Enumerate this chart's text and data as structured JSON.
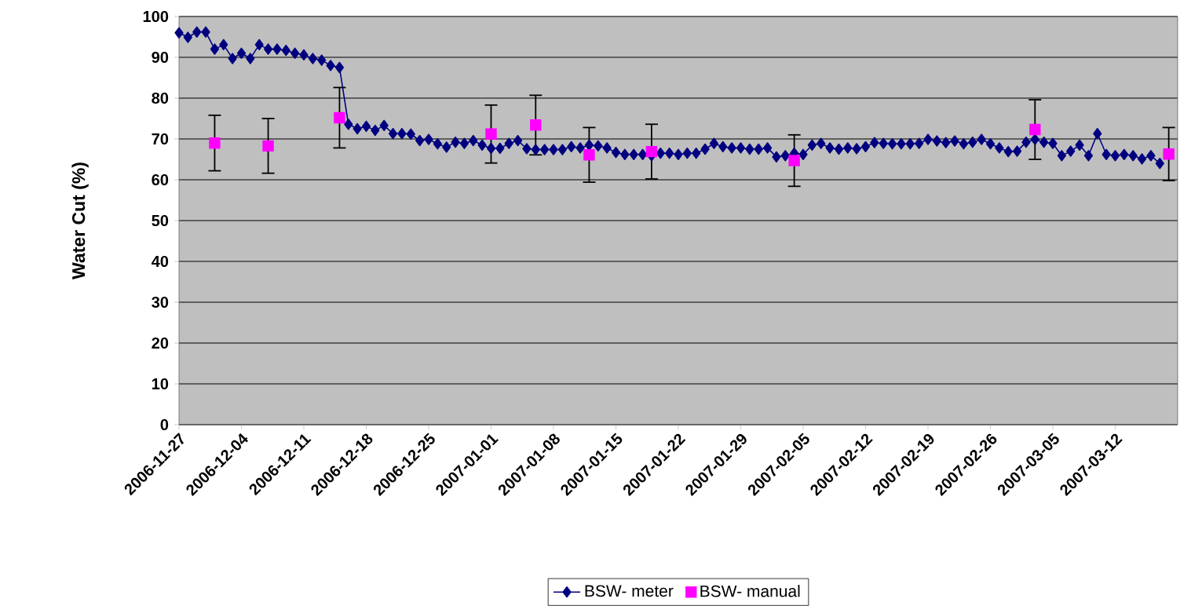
{
  "chart_data": {
    "type": "line",
    "ylabel": "Water Cut (%)",
    "xlim": [
      "2006-11-27",
      "2007-03-19"
    ],
    "ylim": [
      0,
      100
    ],
    "xticks": [
      "2006-11-27",
      "2006-12-04",
      "2006-12-11",
      "2006-12-18",
      "2006-12-25",
      "2007-01-01",
      "2007-01-08",
      "2007-01-15",
      "2007-01-22",
      "2007-01-29",
      "2007-02-05",
      "2007-02-12",
      "2007-02-19",
      "2007-02-26",
      "2007-03-05",
      "2007-03-12"
    ],
    "yticks": [
      0,
      10,
      20,
      30,
      40,
      50,
      60,
      70,
      80,
      90,
      100
    ],
    "grid": "y",
    "legend": "bottom",
    "series": [
      {
        "name": "BSW- meter",
        "color": "#000080",
        "marker": "diamond",
        "x": [
          "2006-11-27",
          "2006-11-28",
          "2006-11-29",
          "2006-11-30",
          "2006-12-01",
          "2006-12-02",
          "2006-12-03",
          "2006-12-04",
          "2006-12-05",
          "2006-12-06",
          "2006-12-07",
          "2006-12-08",
          "2006-12-09",
          "2006-12-10",
          "2006-12-11",
          "2006-12-12",
          "2006-12-13",
          "2006-12-14",
          "2006-12-15",
          "2006-12-16",
          "2006-12-17",
          "2006-12-18",
          "2006-12-19",
          "2006-12-20",
          "2006-12-21",
          "2006-12-22",
          "2006-12-23",
          "2006-12-24",
          "2006-12-25",
          "2006-12-26",
          "2006-12-27",
          "2006-12-28",
          "2006-12-29",
          "2006-12-30",
          "2006-12-31",
          "2007-01-01",
          "2007-01-02",
          "2007-01-03",
          "2007-01-04",
          "2007-01-05",
          "2007-01-06",
          "2007-01-07",
          "2007-01-08",
          "2007-01-09",
          "2007-01-10",
          "2007-01-11",
          "2007-01-12",
          "2007-01-13",
          "2007-01-14",
          "2007-01-15",
          "2007-01-16",
          "2007-01-17",
          "2007-01-18",
          "2007-01-19",
          "2007-01-20",
          "2007-01-21",
          "2007-01-22",
          "2007-01-23",
          "2007-01-24",
          "2007-01-25",
          "2007-01-26",
          "2007-01-27",
          "2007-01-28",
          "2007-01-29",
          "2007-01-30",
          "2007-01-31",
          "2007-02-01",
          "2007-02-02",
          "2007-02-03",
          "2007-02-04",
          "2007-02-05",
          "2007-02-06",
          "2007-02-07",
          "2007-02-08",
          "2007-02-09",
          "2007-02-10",
          "2007-02-11",
          "2007-02-12",
          "2007-02-13",
          "2007-02-14",
          "2007-02-15",
          "2007-02-16",
          "2007-02-17",
          "2007-02-18",
          "2007-02-19",
          "2007-02-20",
          "2007-02-21",
          "2007-02-22",
          "2007-02-23",
          "2007-02-24",
          "2007-02-25",
          "2007-02-26",
          "2007-02-27",
          "2007-02-28",
          "2007-03-01",
          "2007-03-02",
          "2007-03-03",
          "2007-03-04",
          "2007-03-05",
          "2007-03-06",
          "2007-03-07",
          "2007-03-08",
          "2007-03-09",
          "2007-03-10",
          "2007-03-11",
          "2007-03-12",
          "2007-03-13",
          "2007-03-14",
          "2007-03-15",
          "2007-03-16",
          "2007-03-17"
        ],
        "values": [
          96.0,
          94.9,
          96.2,
          96.2,
          92.0,
          93.1,
          89.7,
          91.0,
          89.7,
          93.1,
          92.0,
          92.0,
          91.7,
          91.0,
          90.6,
          89.7,
          89.3,
          88.0,
          87.5,
          73.6,
          72.5,
          73.1,
          72.1,
          73.3,
          71.3,
          71.3,
          71.2,
          69.6,
          69.9,
          68.8,
          68.0,
          69.2,
          68.9,
          69.6,
          68.5,
          67.7,
          67.7,
          68.9,
          69.6,
          67.6,
          67.4,
          67.4,
          67.4,
          67.4,
          68.1,
          67.8,
          68.5,
          68.3,
          67.8,
          66.7,
          66.2,
          66.2,
          66.2,
          65.9,
          66.5,
          66.5,
          66.2,
          66.5,
          66.5,
          67.5,
          68.9,
          68.1,
          67.8,
          67.8,
          67.5,
          67.5,
          67.8,
          65.6,
          65.9,
          66.5,
          66.2,
          68.5,
          68.9,
          67.8,
          67.5,
          67.8,
          67.6,
          68.1,
          69.1,
          68.9,
          68.8,
          68.8,
          68.8,
          68.9,
          69.9,
          69.5,
          69.1,
          69.5,
          68.8,
          69.2,
          69.9,
          68.8,
          67.8,
          66.9,
          67.0,
          69.2,
          69.9,
          69.2,
          68.9,
          65.9,
          67.0,
          68.5,
          65.9,
          71.3,
          66.2,
          65.9,
          66.2,
          65.9,
          65.1,
          65.9,
          64.0
        ]
      },
      {
        "name": "BSW- manual",
        "color": "#ff00ff",
        "type": "scatter",
        "marker": "square",
        "x": [
          "2006-12-01",
          "2006-12-07",
          "2006-12-15",
          "2007-01-01",
          "2007-01-06",
          "2007-01-12",
          "2007-01-19",
          "2007-02-04",
          "2007-03-03",
          "2007-03-18"
        ],
        "values": [
          69.0,
          68.3,
          75.2,
          71.2,
          73.4,
          66.1,
          66.9,
          64.7,
          72.3,
          66.3
        ],
        "errors": [
          6.8,
          6.7,
          7.4,
          7.1,
          7.3,
          6.7,
          6.7,
          6.3,
          7.3,
          6.5
        ]
      }
    ]
  }
}
